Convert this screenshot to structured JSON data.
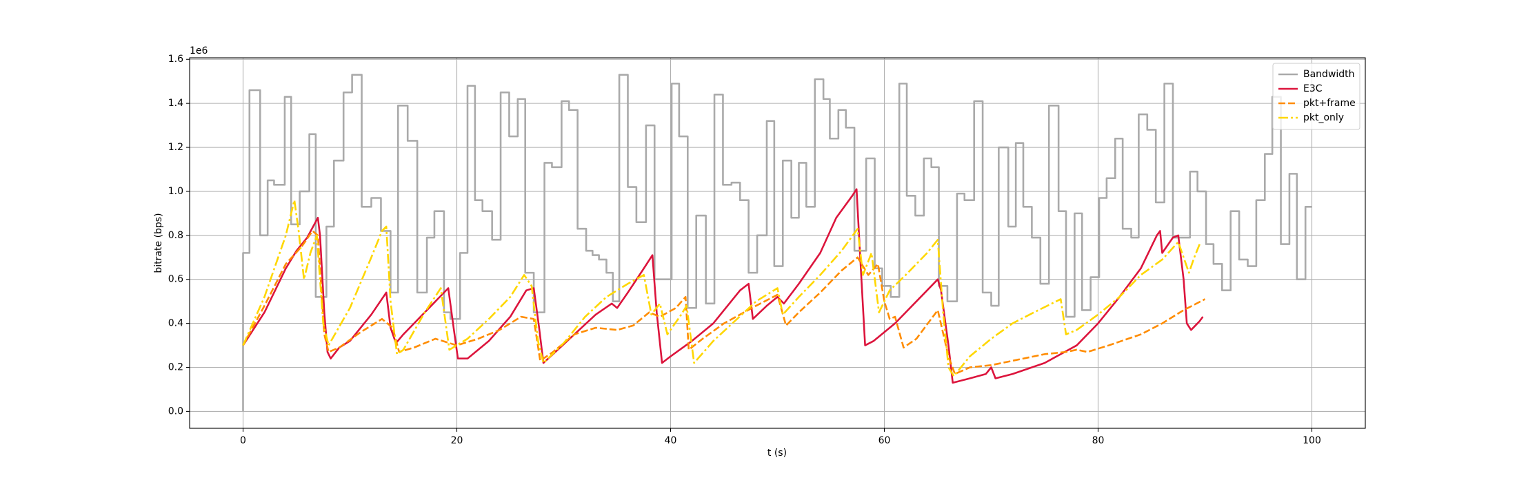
{
  "chart_data": {
    "type": "line",
    "xlabel": "t (s)",
    "ylabel": "bitrate (bps)",
    "y_offset_label": "1e6",
    "xlim": [
      -5,
      105
    ],
    "ylim": [
      -0.077,
      1.607
    ],
    "xticks": [
      0,
      20,
      40,
      60,
      80,
      100
    ],
    "yticks": [
      {
        "value": 0,
        "label": "0.0"
      },
      {
        "value": 0.2,
        "label": "0.2"
      },
      {
        "value": 0.4,
        "label": "0.4"
      },
      {
        "value": 0.6,
        "label": "0.6"
      },
      {
        "value": 0.8,
        "label": "0.8"
      },
      {
        "value": 1.0,
        "label": "1.0"
      },
      {
        "value": 1.2,
        "label": "1.2"
      },
      {
        "value": 1.4,
        "label": "1.4"
      },
      {
        "value": 1.6,
        "label": "1.6"
      }
    ],
    "grid": true,
    "legend": "upper right",
    "series": [
      {
        "name": "Bandwidth",
        "color": "#aaaaaa",
        "linestyle": "solid",
        "drawstyle": "steps-post",
        "x": [
          0,
          0,
          0.6,
          1.6,
          2.3,
          2.9,
          3.9,
          4.5,
          5.3,
          6.2,
          6.8,
          7.8,
          8.5,
          9.4,
          10.2,
          11.1,
          12,
          12.9,
          13.8,
          14.5,
          15.4,
          16.3,
          17.2,
          17.9,
          18.8,
          19.4,
          20.3,
          21,
          21.7,
          22.4,
          23.3,
          24.1,
          24.9,
          25.7,
          26.4,
          27.2,
          28.2,
          28.9,
          29.8,
          30.5,
          31.3,
          32.1,
          32.7,
          33.3,
          34,
          34.6,
          35.2,
          36,
          36.8,
          37.7,
          38.5,
          39.5,
          40.1,
          40.8,
          41.6,
          42.4,
          43.3,
          44.1,
          44.9,
          45.7,
          46.5,
          47.3,
          48.1,
          49,
          49.7,
          50.5,
          51.3,
          52,
          52.7,
          53.5,
          54.3,
          54.9,
          55.7,
          56.4,
          57.2,
          58.3,
          59.1,
          59.8,
          60.6,
          61.4,
          62.1,
          62.9,
          63.7,
          64.4,
          65.1,
          65.9,
          66.8,
          67.5,
          68.4,
          69.2,
          70,
          70.7,
          71.6,
          72.3,
          73,
          73.8,
          74.6,
          75.4,
          76.3,
          77,
          77.8,
          78.5,
          79.3,
          80.1,
          80.8,
          81.6,
          82.3,
          83.1,
          83.8,
          84.6,
          85.4,
          86.2,
          87,
          87.8,
          88.6,
          89.3,
          90.1,
          90.8,
          91.6,
          92.4,
          93.2,
          94,
          94.8,
          95.6,
          96.3,
          97.1,
          97.9,
          98.6,
          99.4,
          100
        ],
        "values": [
          0,
          0.72,
          1.46,
          0.8,
          1.05,
          1.03,
          1.43,
          0.85,
          1.0,
          1.26,
          0.52,
          0.84,
          1.14,
          1.45,
          1.53,
          0.93,
          0.97,
          0.82,
          0.54,
          1.39,
          1.23,
          0.54,
          0.79,
          0.91,
          0.45,
          0.42,
          0.72,
          1.48,
          0.96,
          0.91,
          0.78,
          1.45,
          1.25,
          1.42,
          0.63,
          0.45,
          1.13,
          1.11,
          1.41,
          1.37,
          0.83,
          0.73,
          0.71,
          0.69,
          0.63,
          0.5,
          1.53,
          1.02,
          0.86,
          1.3,
          0.6,
          0.6,
          1.49,
          1.25,
          0.47,
          0.89,
          0.49,
          1.44,
          1.03,
          1.04,
          0.96,
          0.63,
          0.8,
          1.32,
          0.66,
          1.14,
          0.88,
          1.13,
          0.93,
          1.51,
          1.42,
          1.24,
          1.37,
          1.29,
          0.73,
          1.15,
          0.65,
          0.57,
          0.52,
          1.49,
          0.98,
          0.89,
          1.15,
          1.11,
          0.57,
          0.5,
          0.99,
          0.96,
          1.41,
          0.54,
          0.48,
          1.2,
          0.84,
          1.22,
          0.93,
          0.79,
          0.58,
          1.39,
          0.91,
          0.43,
          0.9,
          0.46,
          0.61,
          0.97,
          1.06,
          1.24,
          0.83,
          0.79,
          1.35,
          1.28,
          0.95,
          1.49,
          0.79,
          0.79,
          1.09,
          1.0,
          0.76,
          0.67,
          0.55,
          0.91,
          0.69,
          0.66,
          0.96,
          1.17,
          1.43,
          0.76,
          1.08,
          0.6,
          0.93,
          0.93
        ]
      },
      {
        "name": "E3C",
        "color": "#dc143c",
        "linestyle": "solid",
        "drawstyle": "default",
        "x": [
          0,
          2,
          4,
          5,
          6,
          7,
          7.2,
          7.6,
          7.9,
          8.2,
          9,
          10,
          12,
          13.4,
          13.8,
          14.3,
          15,
          16,
          18,
          19.2,
          19.7,
          20.1,
          21,
          23,
          25,
          26.5,
          27.2,
          27.7,
          28.1,
          29,
          31,
          33,
          34.5,
          35,
          36,
          37.5,
          38.3,
          38.7,
          39.2,
          40,
          42,
          44,
          46.5,
          47.3,
          47.7,
          49,
          50,
          50.6,
          52,
          54,
          55.5,
          57,
          57.4,
          57.8,
          58.2,
          59,
          61,
          63,
          65,
          65.3,
          66,
          66.4,
          68,
          69.5,
          70,
          70.4,
          72,
          75,
          78,
          80,
          82,
          84,
          85.5,
          85.8,
          86,
          87,
          87.5,
          88,
          88.3,
          88.7,
          89.5,
          89.8
        ],
        "values": [
          0.3,
          0.45,
          0.65,
          0.73,
          0.79,
          0.88,
          0.8,
          0.45,
          0.27,
          0.24,
          0.29,
          0.32,
          0.44,
          0.54,
          0.38,
          0.31,
          0.35,
          0.4,
          0.5,
          0.56,
          0.38,
          0.24,
          0.24,
          0.32,
          0.43,
          0.55,
          0.56,
          0.38,
          0.22,
          0.26,
          0.35,
          0.44,
          0.49,
          0.47,
          0.54,
          0.65,
          0.71,
          0.45,
          0.22,
          0.25,
          0.32,
          0.4,
          0.55,
          0.58,
          0.42,
          0.48,
          0.52,
          0.49,
          0.58,
          0.72,
          0.88,
          0.98,
          1.01,
          0.65,
          0.3,
          0.32,
          0.4,
          0.5,
          0.6,
          0.55,
          0.3,
          0.13,
          0.15,
          0.17,
          0.2,
          0.15,
          0.17,
          0.22,
          0.3,
          0.4,
          0.52,
          0.65,
          0.8,
          0.82,
          0.72,
          0.79,
          0.8,
          0.6,
          0.4,
          0.37,
          0.41,
          0.43
        ]
      },
      {
        "name": "pkt+frame",
        "color": "#ff8c00",
        "linestyle": "dashed",
        "drawstyle": "default",
        "x": [
          0,
          2,
          4,
          5.5,
          6.5,
          7,
          7.6,
          8,
          9,
          11,
          13,
          14,
          14.6,
          16,
          18,
          20,
          22,
          24,
          26,
          27.2,
          27.8,
          29,
          31,
          33,
          35,
          36.5,
          38,
          39,
          40.5,
          41.4,
          41.7,
          43,
          45,
          48,
          50,
          50.8,
          52,
          54,
          56,
          57.5,
          58.5,
          59.4,
          60,
          60.5,
          61,
          61.8,
          63,
          65,
          66,
          66.6,
          68,
          70,
          72,
          75,
          77,
          78,
          79,
          81,
          84,
          86,
          88,
          90
        ],
        "values": [
          0.3,
          0.48,
          0.67,
          0.75,
          0.82,
          0.8,
          0.35,
          0.27,
          0.29,
          0.36,
          0.42,
          0.38,
          0.27,
          0.29,
          0.33,
          0.3,
          0.33,
          0.37,
          0.43,
          0.42,
          0.23,
          0.27,
          0.35,
          0.38,
          0.37,
          0.39,
          0.45,
          0.43,
          0.47,
          0.52,
          0.28,
          0.33,
          0.4,
          0.48,
          0.53,
          0.39,
          0.45,
          0.54,
          0.64,
          0.7,
          0.62,
          0.67,
          0.5,
          0.42,
          0.43,
          0.29,
          0.33,
          0.46,
          0.25,
          0.17,
          0.2,
          0.21,
          0.23,
          0.26,
          0.27,
          0.28,
          0.27,
          0.3,
          0.35,
          0.4,
          0.46,
          0.51
        ]
      },
      {
        "name": "pkt_only",
        "color": "#ffd700",
        "linestyle": "dashdot",
        "drawstyle": "default",
        "x": [
          0,
          2,
          4,
          4.8,
          5.2,
          5.7,
          6.3,
          6.9,
          7.5,
          8,
          10,
          12,
          13,
          13.4,
          13.8,
          14.4,
          15,
          17,
          18.5,
          19.3,
          21,
          23,
          25,
          26.3,
          27,
          27.6,
          28.1,
          30,
          32,
          34,
          36,
          37.5,
          38.2,
          39,
          39.7,
          41,
          41.5,
          42.2,
          44,
          46,
          48,
          50,
          50.5,
          52,
          54,
          56,
          57.5,
          58,
          58.8,
          59.5,
          60.5,
          62,
          64,
          65,
          65.5,
          66,
          66.5,
          68,
          70,
          72,
          74,
          76.5,
          77,
          78,
          80,
          82,
          84,
          86,
          87.5,
          88.5,
          89,
          89.5
        ],
        "values": [
          0.3,
          0.52,
          0.8,
          0.96,
          0.82,
          0.6,
          0.72,
          0.8,
          0.4,
          0.3,
          0.47,
          0.7,
          0.82,
          0.84,
          0.5,
          0.26,
          0.28,
          0.45,
          0.56,
          0.28,
          0.33,
          0.42,
          0.52,
          0.62,
          0.57,
          0.32,
          0.22,
          0.31,
          0.43,
          0.52,
          0.58,
          0.62,
          0.44,
          0.49,
          0.35,
          0.44,
          0.48,
          0.22,
          0.32,
          0.41,
          0.5,
          0.56,
          0.44,
          0.52,
          0.62,
          0.73,
          0.83,
          0.62,
          0.72,
          0.45,
          0.55,
          0.62,
          0.72,
          0.78,
          0.45,
          0.2,
          0.16,
          0.25,
          0.33,
          0.4,
          0.45,
          0.51,
          0.35,
          0.37,
          0.44,
          0.52,
          0.62,
          0.69,
          0.77,
          0.63,
          0.7,
          0.76
        ]
      }
    ]
  }
}
